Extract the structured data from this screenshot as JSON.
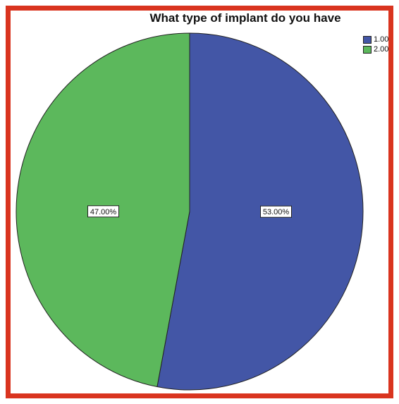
{
  "chart_data": {
    "type": "pie",
    "title": "What type of implant do you have",
    "categories": [
      "1.00",
      "2.00"
    ],
    "values": [
      53.0,
      47.0
    ],
    "data_labels": [
      "53.00%",
      "47.00%"
    ],
    "colors": [
      "#4356a6",
      "#5cb85c"
    ],
    "legend_position": "top-right",
    "start_angle_deg": 0,
    "direction": "clockwise"
  },
  "colors": {
    "frame": "#d9341f",
    "slice_stroke": "#222222"
  }
}
